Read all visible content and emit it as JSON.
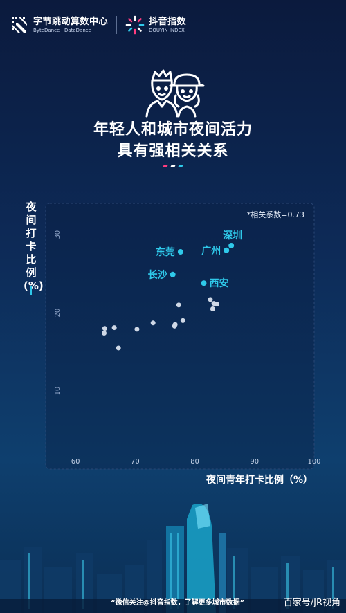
{
  "header": {
    "bytedance_name": "字节跳动算数中心",
    "bytedance_sub": "ByteDance · DataDance",
    "douyin_name": "抖音指数",
    "douyin_sub": "DOUYIN INDEX"
  },
  "headline": {
    "line1": "年轻人和城市夜间活力",
    "line2": "具有强相关关系"
  },
  "accent_colors": {
    "pink": "#ff3d7f",
    "white": "#ffffff",
    "cyan": "#2fc9ea"
  },
  "chart_data": {
    "type": "scatter",
    "xlabel": "夜间青年打卡比例（%）",
    "ylabel": "夜间打卡比例(%)",
    "xlim": [
      55,
      100
    ],
    "ylim": [
      0,
      34
    ],
    "xticks": [
      60,
      70,
      80,
      90,
      100
    ],
    "yticks": [
      10,
      20,
      30
    ],
    "annotation": "*相关系数=0.73",
    "grid": false,
    "labeled_color": "#2fc9ea",
    "unlabeled_color": "#cfd8e6",
    "points": [
      {
        "x": 64.8,
        "y": 17.4
      },
      {
        "x": 64.9,
        "y": 18.0
      },
      {
        "x": 66.5,
        "y": 18.1
      },
      {
        "x": 67.2,
        "y": 15.5
      },
      {
        "x": 70.3,
        "y": 17.9
      },
      {
        "x": 73.0,
        "y": 18.7
      },
      {
        "x": 76.6,
        "y": 18.3
      },
      {
        "x": 76.7,
        "y": 18.5
      },
      {
        "x": 77.3,
        "y": 21.0
      },
      {
        "x": 78.0,
        "y": 19.0
      },
      {
        "x": 82.6,
        "y": 21.7
      },
      {
        "x": 83.0,
        "y": 20.5
      },
      {
        "x": 83.2,
        "y": 21.2
      },
      {
        "x": 83.7,
        "y": 21.1
      },
      {
        "x": 81.5,
        "y": 23.8,
        "label": "西安"
      },
      {
        "x": 76.3,
        "y": 24.9,
        "label": "长沙"
      },
      {
        "x": 77.6,
        "y": 27.8,
        "label": "东莞"
      },
      {
        "x": 85.3,
        "y": 28.0,
        "label": "广州"
      },
      {
        "x": 86.1,
        "y": 28.6,
        "label": "深圳"
      }
    ]
  },
  "footer": {
    "note": "“微信关注@抖音指数，了解更多城市数据”",
    "watermark": "百家号/JR视角"
  }
}
